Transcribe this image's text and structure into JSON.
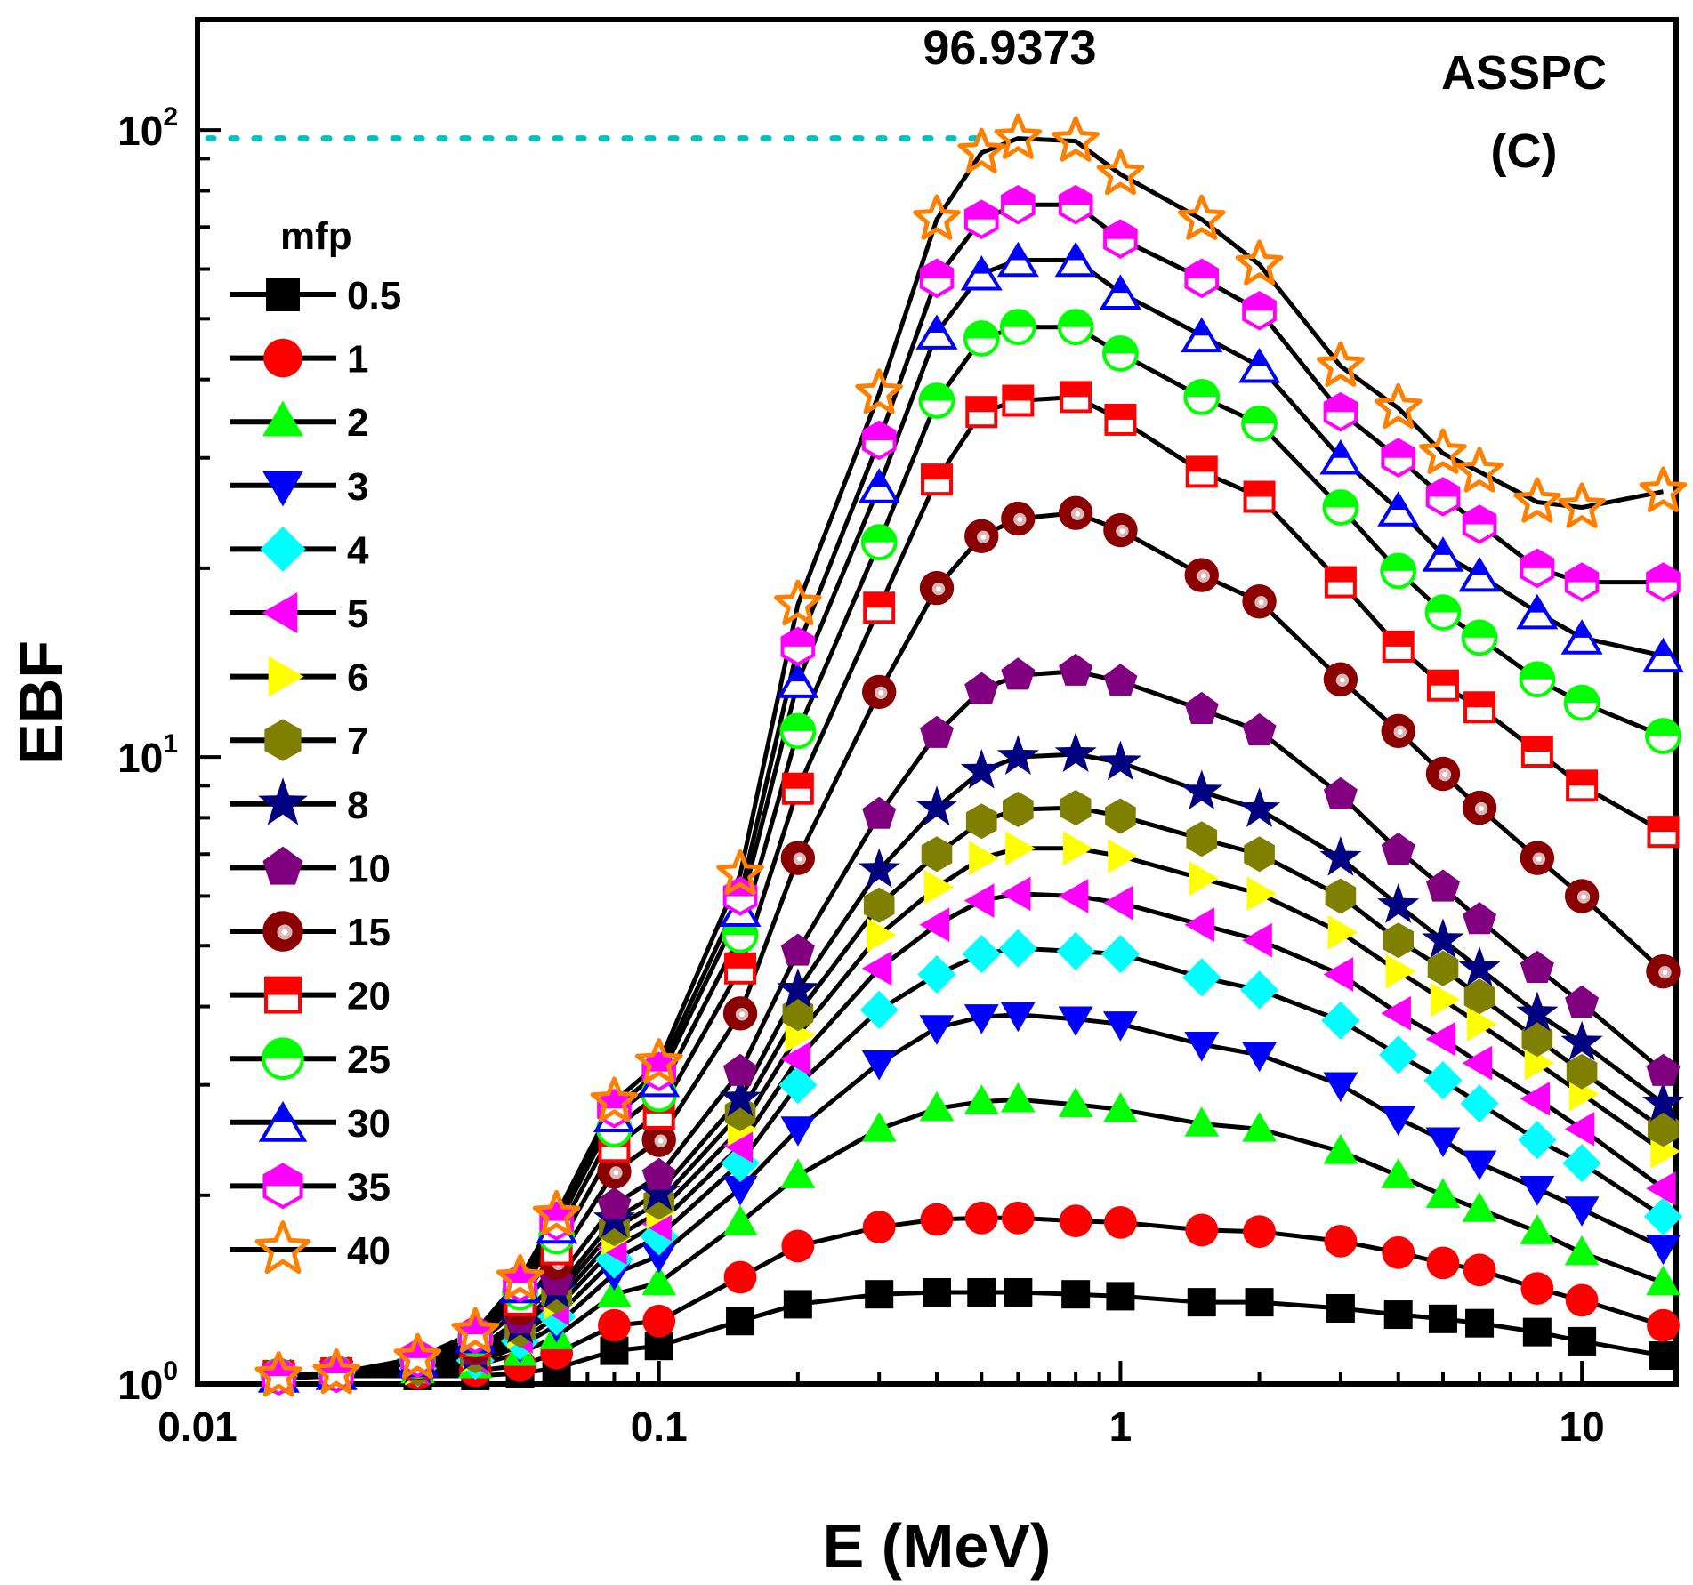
{
  "chart_data": {
    "type": "line",
    "xlabel": "E (MeV)",
    "ylabel": "EBF",
    "xscale": "log",
    "yscale": "log",
    "xlim": [
      0.01,
      16
    ],
    "ylim": [
      1,
      150
    ],
    "x_tick_labels": [
      "0.01",
      "0.1",
      "1",
      "10"
    ],
    "y_tick_labels": [
      {
        "base": "10",
        "exp": "0"
      },
      {
        "base": "10",
        "exp": "1"
      },
      {
        "base": "10",
        "exp": "2"
      }
    ],
    "annotation_text": "ASSPC",
    "panel_label": "(C)",
    "peak_label": "96.9373",
    "peak_value": 96.9373,
    "legend_title": "mfp",
    "x": [
      0.015,
      0.02,
      0.03,
      0.04,
      0.05,
      0.06,
      0.08,
      0.1,
      0.15,
      0.2,
      0.3,
      0.4,
      0.5,
      0.6,
      0.8,
      1,
      1.5,
      2,
      3,
      4,
      5,
      6,
      8,
      10,
      15
    ],
    "series": [
      {
        "name": "0.5",
        "marker": "square",
        "color": "#000000",
        "values": [
          1.02,
          1.03,
          1.03,
          1.03,
          1.04,
          1.06,
          1.13,
          1.15,
          1.26,
          1.34,
          1.39,
          1.4,
          1.4,
          1.4,
          1.39,
          1.38,
          1.35,
          1.35,
          1.32,
          1.29,
          1.27,
          1.25,
          1.21,
          1.17,
          1.11
        ]
      },
      {
        "name": "1",
        "marker": "circle",
        "color": "#ff0000",
        "values": [
          1.03,
          1.04,
          1.04,
          1.05,
          1.07,
          1.12,
          1.24,
          1.26,
          1.48,
          1.66,
          1.78,
          1.83,
          1.84,
          1.84,
          1.82,
          1.81,
          1.76,
          1.75,
          1.69,
          1.62,
          1.56,
          1.52,
          1.42,
          1.36,
          1.24
        ]
      },
      {
        "name": "2",
        "marker": "triangle-up",
        "color": "#00ff00",
        "values": [
          1.03,
          1.04,
          1.05,
          1.07,
          1.12,
          1.19,
          1.39,
          1.45,
          1.81,
          2.15,
          2.55,
          2.75,
          2.82,
          2.84,
          2.79,
          2.74,
          2.6,
          2.55,
          2.35,
          2.15,
          2.0,
          1.9,
          1.75,
          1.62,
          1.45
        ]
      },
      {
        "name": "3",
        "marker": "triangle-down",
        "color": "#0000ff",
        "values": [
          1.03,
          1.04,
          1.05,
          1.08,
          1.15,
          1.24,
          1.5,
          1.6,
          2.05,
          2.55,
          3.25,
          3.7,
          3.85,
          3.88,
          3.82,
          3.75,
          3.48,
          3.35,
          3.0,
          2.65,
          2.45,
          2.25,
          2.05,
          1.9,
          1.65
        ]
      },
      {
        "name": "4",
        "marker": "diamond",
        "color": "#00ffff",
        "values": [
          1.03,
          1.04,
          1.06,
          1.09,
          1.17,
          1.28,
          1.58,
          1.72,
          2.25,
          3.0,
          3.95,
          4.5,
          4.85,
          4.95,
          4.9,
          4.85,
          4.45,
          4.25,
          3.8,
          3.35,
          3.05,
          2.8,
          2.45,
          2.25,
          1.85
        ]
      },
      {
        "name": "5",
        "marker": "triangle-left",
        "color": "#ff00ff",
        "values": [
          1.03,
          1.04,
          1.06,
          1.1,
          1.19,
          1.32,
          1.65,
          1.8,
          2.4,
          3.3,
          4.6,
          5.4,
          5.9,
          6.05,
          6.0,
          5.85,
          5.4,
          5.1,
          4.5,
          3.9,
          3.55,
          3.25,
          2.85,
          2.55,
          2.05
        ]
      },
      {
        "name": "6",
        "marker": "triangle-right",
        "color": "#ffff00",
        "values": [
          1.03,
          1.04,
          1.06,
          1.11,
          1.21,
          1.35,
          1.71,
          1.88,
          2.55,
          3.6,
          5.2,
          6.2,
          6.9,
          7.15,
          7.15,
          6.95,
          6.4,
          6.05,
          5.25,
          4.55,
          4.1,
          3.75,
          3.25,
          2.9,
          2.35
        ]
      },
      {
        "name": "7",
        "marker": "hexagon",
        "color": "#808000",
        "values": [
          1.03,
          1.04,
          1.06,
          1.11,
          1.22,
          1.38,
          1.77,
          1.95,
          2.7,
          3.9,
          5.8,
          7.0,
          7.9,
          8.25,
          8.3,
          8.05,
          7.4,
          7.0,
          6.0,
          5.1,
          4.6,
          4.15,
          3.55,
          3.15,
          2.55
        ]
      },
      {
        "name": "8",
        "marker": "star",
        "color": "#000080",
        "values": [
          1.03,
          1.04,
          1.07,
          1.12,
          1.24,
          1.41,
          1.83,
          2.02,
          2.85,
          4.25,
          6.6,
          8.3,
          9.5,
          10.0,
          10.1,
          9.8,
          8.8,
          8.25,
          6.9,
          5.8,
          5.1,
          4.6,
          3.9,
          3.5,
          2.8
        ]
      },
      {
        "name": "10",
        "marker": "pentagon",
        "color": "#800080",
        "values": [
          1.03,
          1.04,
          1.07,
          1.13,
          1.27,
          1.46,
          1.93,
          2.15,
          3.15,
          4.9,
          8.1,
          10.9,
          12.8,
          13.5,
          13.7,
          13.2,
          11.9,
          11.0,
          8.7,
          7.1,
          6.2,
          5.5,
          4.6,
          4.05,
          3.15
        ]
      },
      {
        "name": "15",
        "marker": "ball",
        "color": "#8b0000",
        "values": [
          1.03,
          1.04,
          1.08,
          1.15,
          1.32,
          1.56,
          2.18,
          2.45,
          3.9,
          6.9,
          12.7,
          18.6,
          22.5,
          24.0,
          24.5,
          23.0,
          19.5,
          17.7,
          13.3,
          11.0,
          9.4,
          8.3,
          6.9,
          6.0,
          4.55
        ]
      },
      {
        "name": "20",
        "marker": "half-square",
        "color": "#ff0000",
        "values": [
          1.03,
          1.04,
          1.08,
          1.17,
          1.36,
          1.64,
          2.39,
          2.7,
          4.6,
          8.9,
          17.3,
          27.7,
          35.5,
          37.0,
          37.5,
          34.5,
          28.5,
          26.0,
          19.0,
          15.0,
          13.0,
          12.0,
          10.2,
          9.0,
          7.6
        ]
      },
      {
        "name": "25",
        "marker": "half-circle",
        "color": "#00ff00",
        "values": [
          1.03,
          1.04,
          1.09,
          1.18,
          1.4,
          1.72,
          2.55,
          2.9,
          5.2,
          11.0,
          22.0,
          37.0,
          46.5,
          48.5,
          48.5,
          44.0,
          37.5,
          34.0,
          25.0,
          19.8,
          17.0,
          15.5,
          13.3,
          12.2,
          10.8
        ]
      },
      {
        "name": "30",
        "marker": "half-triangle",
        "color": "#0000ff",
        "values": [
          1.03,
          1.04,
          1.09,
          1.19,
          1.43,
          1.78,
          2.68,
          3.05,
          5.7,
          13.2,
          27.0,
          47.5,
          59.0,
          62.0,
          62.0,
          55.0,
          47.0,
          42.0,
          30.0,
          24.8,
          21.0,
          19.5,
          17.0,
          15.5,
          14.5
        ]
      },
      {
        "name": "35",
        "marker": "half-hexagon",
        "color": "#ff00ff",
        "values": [
          1.03,
          1.04,
          1.1,
          1.2,
          1.45,
          1.82,
          2.75,
          3.15,
          6.0,
          15.0,
          32.0,
          58.0,
          72.0,
          76.0,
          76.0,
          67.0,
          58.0,
          51.5,
          35.5,
          30.0,
          26.0,
          23.5,
          20.0,
          19.0,
          19.0
        ]
      },
      {
        "name": "40",
        "marker": "open-star",
        "color": "#ff8000",
        "values": [
          1.03,
          1.04,
          1.1,
          1.21,
          1.47,
          1.86,
          2.82,
          3.25,
          6.5,
          17.5,
          38.0,
          72.0,
          92.0,
          96.94,
          96.0,
          85.0,
          72.0,
          61.0,
          42.0,
          36.0,
          30.5,
          28.5,
          25.5,
          25.0,
          26.5
        ]
      }
    ]
  }
}
